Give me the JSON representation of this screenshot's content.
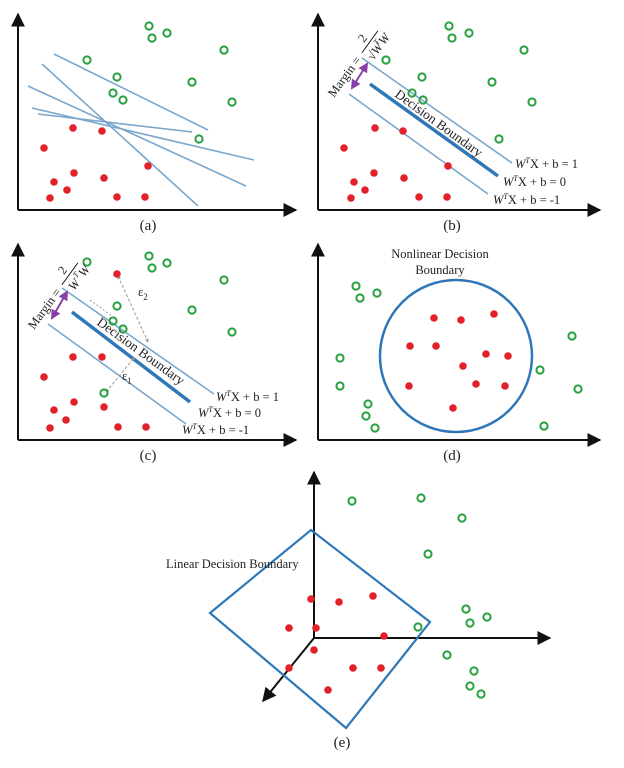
{
  "colors": {
    "axis": "#111111",
    "line": "#7ba7cc",
    "boundary": "#2f78b7",
    "red": "#e3212b",
    "green": "#27a13f",
    "arrow": "#8a3fa8",
    "dashed": "#9a9a9a"
  },
  "panels": [
    {
      "id": "a",
      "caption": "(a)",
      "red": [
        [
          44,
          148
        ],
        [
          73,
          128
        ],
        [
          102,
          131
        ],
        [
          148,
          166
        ],
        [
          54,
          182
        ],
        [
          67,
          190
        ],
        [
          74,
          173
        ],
        [
          104,
          178
        ],
        [
          50,
          198
        ],
        [
          117,
          197
        ],
        [
          145,
          197
        ]
      ],
      "green": [
        [
          149,
          26
        ],
        [
          152,
          38
        ],
        [
          167,
          33
        ],
        [
          87,
          60
        ],
        [
          117,
          77
        ],
        [
          113,
          93
        ],
        [
          123,
          100
        ],
        [
          192,
          82
        ],
        [
          224,
          50
        ],
        [
          232,
          102
        ],
        [
          199,
          139
        ]
      ],
      "lines": [
        [
          [
            42,
            64
          ],
          [
            198,
            206
          ]
        ],
        [
          [
            28,
            86
          ],
          [
            246,
            186
          ]
        ],
        [
          [
            32,
            108
          ],
          [
            254,
            160
          ]
        ],
        [
          [
            54,
            54
          ],
          [
            208,
            130
          ]
        ],
        [
          [
            38,
            114
          ],
          [
            192,
            132
          ]
        ]
      ]
    },
    {
      "id": "b",
      "caption": "(b)",
      "margin_label": "Margin = ",
      "margin_num": "2",
      "margin_den": "√W",
      "margin_sup": "T",
      "margin_den2": "W",
      "decision_label": "Decision Boundary",
      "eq1": "W",
      "eq_tail_1": "X + b = 1",
      "eq_tail_0": "X + b = 0",
      "eq_tail_m1": "X + b = -1",
      "red": [
        [
          344,
          148
        ],
        [
          375,
          128
        ],
        [
          403,
          131
        ],
        [
          448,
          166
        ],
        [
          354,
          182
        ],
        [
          365,
          190
        ],
        [
          374,
          173
        ],
        [
          404,
          178
        ],
        [
          351,
          198
        ],
        [
          419,
          197
        ],
        [
          447,
          197
        ]
      ],
      "green": [
        [
          449,
          26
        ],
        [
          452,
          38
        ],
        [
          469,
          33
        ],
        [
          386,
          60
        ],
        [
          422,
          77
        ],
        [
          412,
          93
        ],
        [
          423,
          100
        ],
        [
          492,
          82
        ],
        [
          524,
          50
        ],
        [
          532,
          102
        ],
        [
          499,
          139
        ]
      ]
    },
    {
      "id": "c",
      "caption": "(c)",
      "epsilon_1": "ε",
      "epsilon_2": "ε",
      "red": [
        [
          44,
          377
        ],
        [
          73,
          357
        ],
        [
          102,
          357
        ],
        [
          117,
          274
        ],
        [
          54,
          410
        ],
        [
          66,
          420
        ],
        [
          74,
          402
        ],
        [
          104,
          407
        ],
        [
          50,
          428
        ],
        [
          118,
          427
        ],
        [
          146,
          427
        ]
      ],
      "green": [
        [
          149,
          256
        ],
        [
          152,
          268
        ],
        [
          167,
          263
        ],
        [
          87,
          262
        ],
        [
          117,
          306
        ],
        [
          113,
          321
        ],
        [
          123,
          329
        ],
        [
          192,
          310
        ],
        [
          224,
          280
        ],
        [
          232,
          332
        ],
        [
          104,
          393
        ]
      ]
    },
    {
      "id": "d",
      "caption": "(d)",
      "title_line1": "Nonlinear Decision",
      "title_line2": "Boundary",
      "red": [
        [
          434,
          318
        ],
        [
          461,
          320
        ],
        [
          494,
          314
        ],
        [
          410,
          346
        ],
        [
          436,
          346
        ],
        [
          486,
          354
        ],
        [
          463,
          366
        ],
        [
          508,
          356
        ],
        [
          409,
          386
        ],
        [
          476,
          384
        ],
        [
          505,
          386
        ],
        [
          453,
          408
        ]
      ],
      "green": [
        [
          356,
          286
        ],
        [
          360,
          298
        ],
        [
          377,
          293
        ],
        [
          340,
          358
        ],
        [
          340,
          386
        ],
        [
          368,
          404
        ],
        [
          366,
          416
        ],
        [
          375,
          428
        ],
        [
          540,
          370
        ],
        [
          572,
          336
        ],
        [
          578,
          389
        ],
        [
          544,
          426
        ]
      ]
    },
    {
      "id": "e",
      "caption": "(e)",
      "label": "Linear Decision Boundary",
      "red": [
        [
          311,
          599
        ],
        [
          339,
          602
        ],
        [
          373,
          596
        ],
        [
          289,
          628
        ],
        [
          316,
          628
        ],
        [
          384,
          636
        ],
        [
          314,
          650
        ],
        [
          353,
          668
        ],
        [
          381,
          668
        ],
        [
          289,
          668
        ],
        [
          328,
          690
        ]
      ],
      "green": [
        [
          352,
          501
        ],
        [
          421,
          498
        ],
        [
          462,
          518
        ],
        [
          428,
          554
        ],
        [
          466,
          609
        ],
        [
          470,
          623
        ],
        [
          487,
          617
        ],
        [
          418,
          627
        ],
        [
          447,
          655
        ],
        [
          474,
          671
        ],
        [
          470,
          686
        ],
        [
          481,
          694
        ]
      ]
    }
  ]
}
